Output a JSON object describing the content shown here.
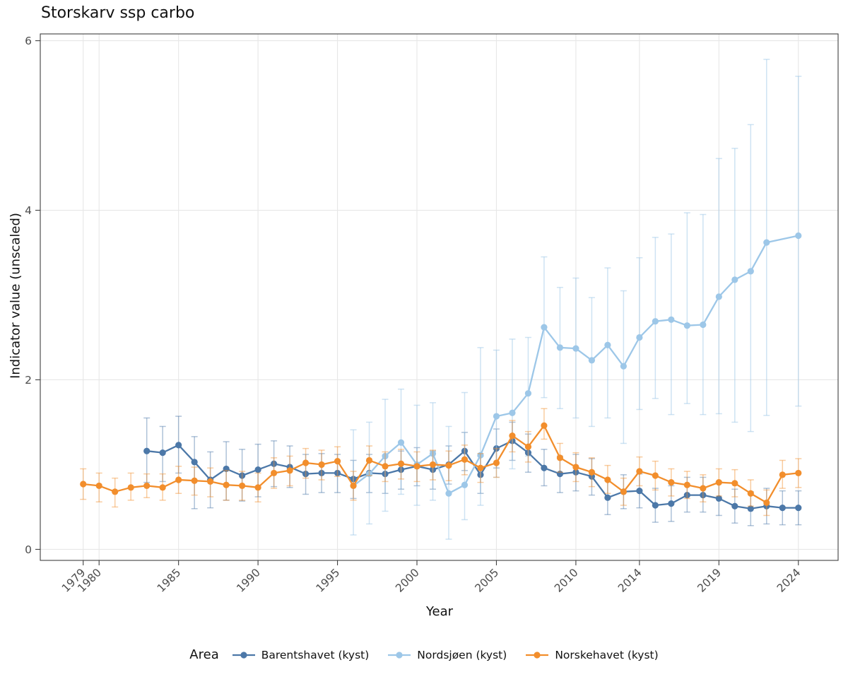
{
  "chart_data": {
    "type": "line",
    "title": "Storskarv ssp carbo",
    "xlabel": "Year",
    "ylabel": "Indicator value (unscaled)",
    "legend_title": "Area",
    "legend_position": "bottom",
    "grid": true,
    "x_ticks": [
      1979,
      1980,
      1985,
      1990,
      1995,
      2000,
      2005,
      2010,
      2014,
      2019,
      2024
    ],
    "y_ticks": [
      0,
      2,
      4,
      6
    ],
    "x_range": [
      1976.3,
      2026.5
    ],
    "y_range": [
      -0.13,
      6.08
    ],
    "colors": {
      "grid": "#e7e7e7",
      "axis": "#3f3f3f",
      "tick_label": "#4d4d4d"
    },
    "series": [
      {
        "name": "Barentshavet (kyst)",
        "color": "#4c78a8",
        "bar_opacity": 0.45,
        "points": [
          [
            1983,
            1.16,
            0.79,
            1.55
          ],
          [
            1984,
            1.14,
            0.8,
            1.45
          ],
          [
            1985,
            1.23,
            0.9,
            1.57
          ],
          [
            1986,
            1.03,
            0.48,
            1.33
          ],
          [
            1987,
            0.82,
            0.49,
            1.15
          ],
          [
            1988,
            0.95,
            0.58,
            1.27
          ],
          [
            1989,
            0.87,
            0.57,
            1.18
          ],
          [
            1990,
            0.94,
            0.62,
            1.24
          ],
          [
            1991,
            1.01,
            0.74,
            1.28
          ],
          [
            1992,
            0.97,
            0.73,
            1.22
          ],
          [
            1993,
            0.89,
            0.65,
            1.12
          ],
          [
            1994,
            0.9,
            0.67,
            1.13
          ],
          [
            1995,
            0.9,
            0.67,
            1.12
          ],
          [
            1996,
            0.83,
            0.6,
            1.05
          ],
          [
            1997,
            0.9,
            0.67,
            1.12
          ],
          [
            1998,
            0.89,
            0.66,
            1.11
          ],
          [
            1999,
            0.94,
            0.71,
            1.16
          ],
          [
            2000,
            0.98,
            0.75,
            1.2
          ],
          [
            2001,
            0.94,
            0.71,
            1.16
          ],
          [
            2002,
            1.0,
            0.77,
            1.22
          ],
          [
            2003,
            1.16,
            0.93,
            1.38
          ],
          [
            2004,
            0.88,
            0.66,
            1.1
          ],
          [
            2005,
            1.19,
            0.96,
            1.42
          ],
          [
            2006,
            1.28,
            1.05,
            1.5
          ],
          [
            2007,
            1.14,
            0.91,
            1.36
          ],
          [
            2008,
            0.96,
            0.75,
            1.18
          ],
          [
            2009,
            0.89,
            0.67,
            1.1
          ],
          [
            2010,
            0.91,
            0.69,
            1.12
          ],
          [
            2011,
            0.86,
            0.64,
            1.07
          ],
          [
            2012,
            0.61,
            0.41,
            0.81
          ],
          [
            2013,
            0.68,
            0.48,
            0.88
          ],
          [
            2014,
            0.69,
            0.49,
            0.89
          ],
          [
            2015,
            0.52,
            0.32,
            0.72
          ],
          [
            2016,
            0.54,
            0.33,
            0.75
          ],
          [
            2017,
            0.64,
            0.44,
            0.85
          ],
          [
            2018,
            0.64,
            0.44,
            0.85
          ],
          [
            2019,
            0.6,
            0.4,
            0.8
          ],
          [
            2020,
            0.51,
            0.31,
            0.71
          ],
          [
            2021,
            0.48,
            0.28,
            0.68
          ],
          [
            2022,
            0.51,
            0.3,
            0.72
          ],
          [
            2023,
            0.49,
            0.29,
            0.69
          ],
          [
            2024,
            0.49,
            0.29,
            0.69
          ]
        ]
      },
      {
        "name": "Nordsjøen (kyst)",
        "color": "#9dc7e8",
        "bar_opacity": 0.5,
        "points": [
          [
            1996,
            0.75,
            0.17,
            1.41
          ],
          [
            1997,
            0.89,
            0.3,
            1.5
          ],
          [
            1998,
            1.1,
            0.45,
            1.77
          ],
          [
            1999,
            1.26,
            0.65,
            1.89
          ],
          [
            2000,
            1.0,
            0.52,
            1.7
          ],
          [
            2001,
            1.13,
            0.58,
            1.73
          ],
          [
            2002,
            0.66,
            0.12,
            1.45
          ],
          [
            2003,
            0.76,
            0.35,
            1.85
          ],
          [
            2004,
            1.11,
            0.52,
            2.38
          ],
          [
            2005,
            1.57,
            0.85,
            2.35
          ],
          [
            2006,
            1.61,
            0.95,
            2.48
          ],
          [
            2007,
            1.84,
            1.1,
            2.5
          ],
          [
            2008,
            2.62,
            1.79,
            3.45
          ],
          [
            2009,
            2.38,
            1.66,
            3.09
          ],
          [
            2010,
            2.37,
            1.55,
            3.2
          ],
          [
            2011,
            2.23,
            1.45,
            2.97
          ],
          [
            2012,
            2.41,
            1.55,
            3.32
          ],
          [
            2013,
            2.16,
            1.25,
            3.05
          ],
          [
            2014,
            2.5,
            1.65,
            3.44
          ],
          [
            2015,
            2.69,
            1.78,
            3.68
          ],
          [
            2016,
            2.71,
            1.59,
            3.72
          ],
          [
            2017,
            2.64,
            1.72,
            3.97
          ],
          [
            2018,
            2.65,
            1.59,
            3.95
          ],
          [
            2019,
            2.98,
            1.6,
            4.61
          ],
          [
            2020,
            3.18,
            1.5,
            4.73
          ],
          [
            2021,
            3.28,
            1.39,
            5.01
          ],
          [
            2022,
            3.62,
            1.58,
            5.78
          ],
          [
            2024,
            3.7,
            1.69,
            5.58
          ]
        ]
      },
      {
        "name": "Norskehavet (kyst)",
        "color": "#f28e2c",
        "bar_opacity": 0.45,
        "points": [
          [
            1979,
            0.77,
            0.59,
            0.95
          ],
          [
            1980,
            0.75,
            0.56,
            0.9
          ],
          [
            1981,
            0.68,
            0.5,
            0.84
          ],
          [
            1982,
            0.73,
            0.58,
            0.9
          ],
          [
            1983,
            0.75,
            0.61,
            0.89
          ],
          [
            1984,
            0.73,
            0.58,
            0.89
          ],
          [
            1985,
            0.82,
            0.66,
            0.98
          ],
          [
            1986,
            0.81,
            0.64,
            0.97
          ],
          [
            1987,
            0.8,
            0.62,
            0.96
          ],
          [
            1988,
            0.76,
            0.58,
            0.93
          ],
          [
            1989,
            0.75,
            0.58,
            0.92
          ],
          [
            1990,
            0.73,
            0.56,
            0.9
          ],
          [
            1991,
            0.9,
            0.72,
            1.08
          ],
          [
            1992,
            0.93,
            0.75,
            1.1
          ],
          [
            1993,
            1.02,
            0.84,
            1.19
          ],
          [
            1994,
            1.0,
            0.82,
            1.17
          ],
          [
            1995,
            1.04,
            0.86,
            1.21
          ],
          [
            1996,
            0.75,
            0.58,
            0.92
          ],
          [
            1997,
            1.05,
            0.87,
            1.22
          ],
          [
            1998,
            0.98,
            0.8,
            1.15
          ],
          [
            1999,
            1.01,
            0.83,
            1.18
          ],
          [
            2000,
            0.98,
            0.8,
            1.15
          ],
          [
            2001,
            1.0,
            0.82,
            1.17
          ],
          [
            2002,
            0.99,
            0.81,
            1.16
          ],
          [
            2003,
            1.06,
            0.88,
            1.23
          ],
          [
            2004,
            0.96,
            0.79,
            1.13
          ],
          [
            2005,
            1.02,
            0.85,
            1.19
          ],
          [
            2006,
            1.34,
            1.15,
            1.52
          ],
          [
            2007,
            1.21,
            1.03,
            1.39
          ],
          [
            2008,
            1.46,
            1.3,
            1.66
          ],
          [
            2009,
            1.08,
            0.91,
            1.25
          ],
          [
            2010,
            0.97,
            0.8,
            1.14
          ],
          [
            2011,
            0.91,
            0.74,
            1.08
          ],
          [
            2012,
            0.82,
            0.66,
            0.99
          ],
          [
            2013,
            0.68,
            0.52,
            0.84
          ],
          [
            2014,
            0.92,
            0.75,
            1.09
          ],
          [
            2015,
            0.87,
            0.7,
            1.04
          ],
          [
            2016,
            0.79,
            0.63,
            0.95
          ],
          [
            2017,
            0.76,
            0.6,
            0.92
          ],
          [
            2018,
            0.72,
            0.56,
            0.88
          ],
          [
            2019,
            0.79,
            0.63,
            0.95
          ],
          [
            2020,
            0.78,
            0.62,
            0.94
          ],
          [
            2021,
            0.66,
            0.51,
            0.82
          ],
          [
            2022,
            0.55,
            0.4,
            0.7
          ],
          [
            2023,
            0.88,
            0.72,
            1.05
          ],
          [
            2024,
            0.9,
            0.73,
            1.07
          ]
        ]
      }
    ]
  }
}
